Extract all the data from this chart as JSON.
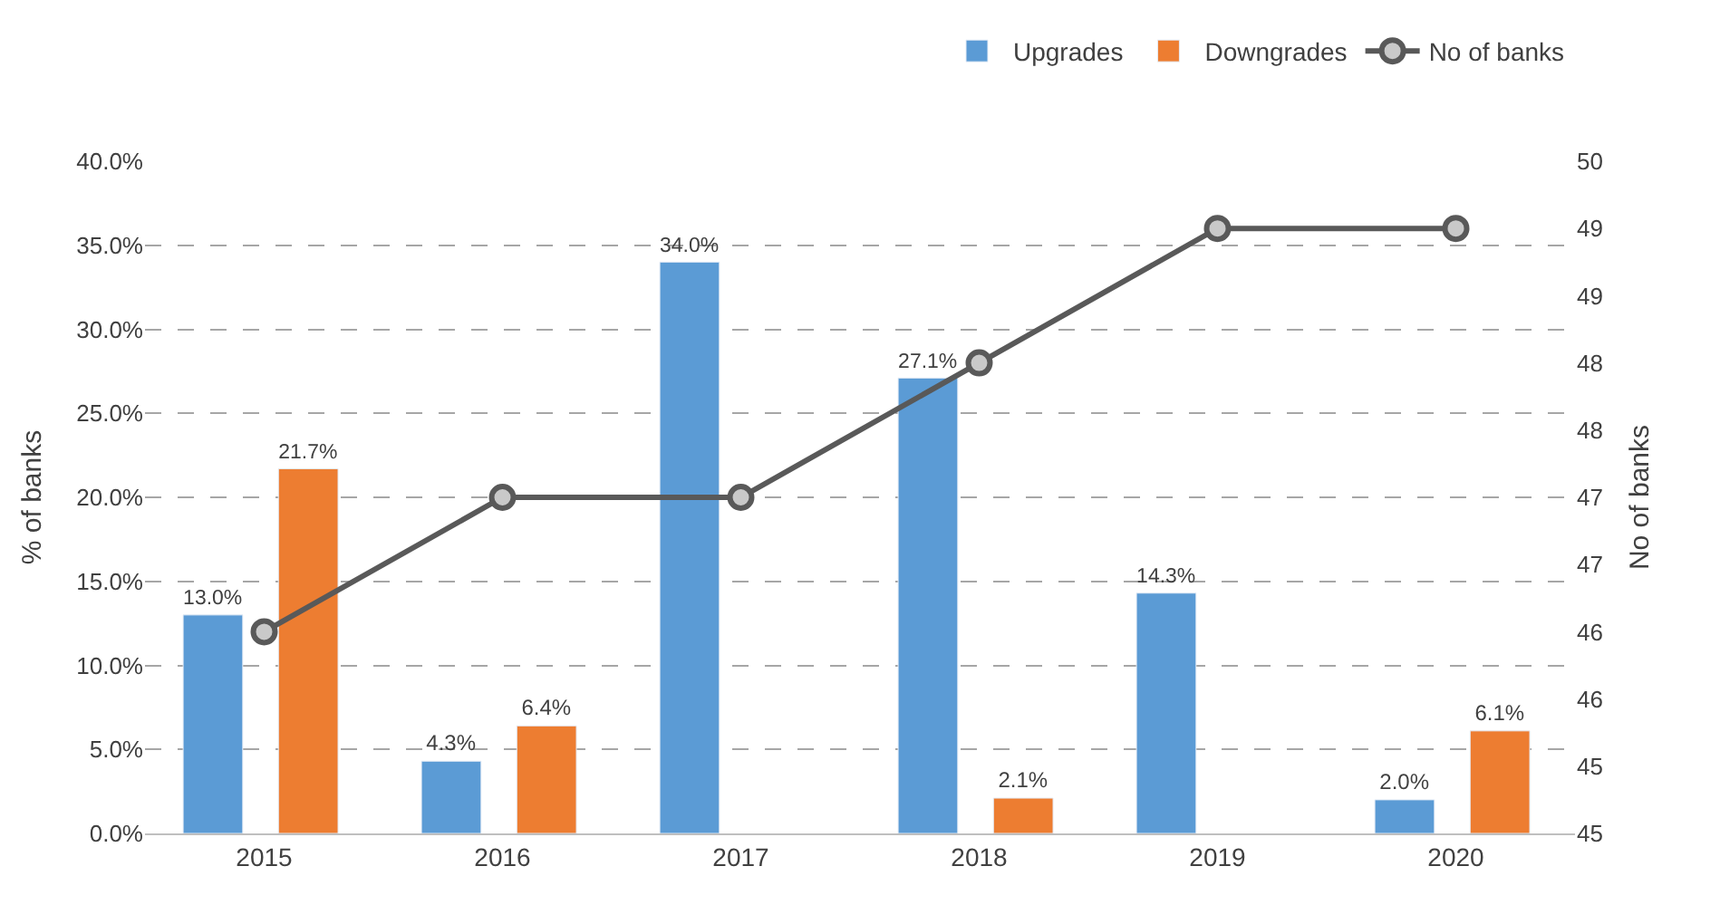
{
  "chart_data": {
    "type": "bar",
    "ylabel": "% of banks",
    "y2label": "No of banks",
    "categories": [
      "2015",
      "2016",
      "2017",
      "2018",
      "2019",
      "2020"
    ],
    "series": [
      {
        "name": "Upgrades",
        "color": "#5b9bd5",
        "values": [
          13.0,
          4.3,
          34.0,
          27.1,
          14.3,
          2.0
        ],
        "value_labels": [
          "13.0%",
          "4.3%",
          "34.0%",
          "27.1%",
          "14.3%",
          "2.0%"
        ]
      },
      {
        "name": "Downgrades",
        "color": "#ed7d31",
        "values": [
          21.7,
          6.4,
          null,
          2.1,
          null,
          6.1
        ],
        "value_labels": [
          "21.7%",
          "6.4%",
          null,
          "2.1%",
          null,
          "6.1%"
        ]
      },
      {
        "name": "No of banks",
        "type": "line",
        "axis": "y2",
        "color": "#595959",
        "marker": "circle",
        "line_style": "solid",
        "values": [
          46.5,
          47.5,
          47.5,
          48.5,
          49.5,
          49.5
        ]
      }
    ],
    "ylim": [
      0,
      40
    ],
    "yticks": [
      {
        "value": 0,
        "label": "0.0%"
      },
      {
        "value": 5,
        "label": "5.0%"
      },
      {
        "value": 10,
        "label": "10.0%"
      },
      {
        "value": 15,
        "label": "15.0%"
      },
      {
        "value": 20,
        "label": "20.0%"
      },
      {
        "value": 25,
        "label": "25.0%"
      },
      {
        "value": 30,
        "label": "30.0%"
      },
      {
        "value": 35,
        "label": "35.0%"
      },
      {
        "value": 40,
        "label": "40.0%"
      }
    ],
    "y2lim": [
      45,
      50
    ],
    "y2ticks": [
      45,
      {
        "value": 45.5,
        "label": "45"
      },
      46,
      {
        "value": 46.5,
        "label": "46"
      },
      47,
      {
        "value": 47.5,
        "label": "47"
      },
      48,
      {
        "value": 48.5,
        "label": "48"
      },
      49,
      {
        "value": 49.5,
        "label": "49"
      },
      50
    ],
    "grid": "y",
    "legend": "top right"
  }
}
